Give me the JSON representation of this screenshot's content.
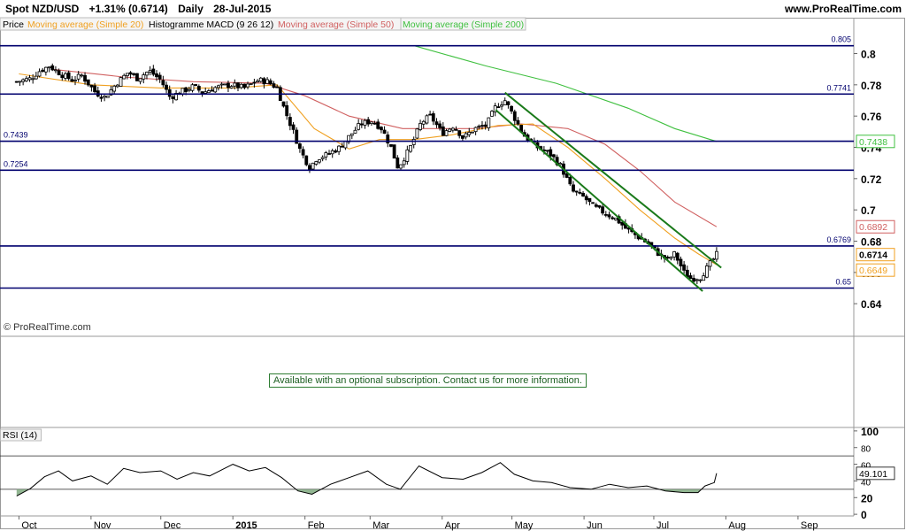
{
  "header": {
    "symbol": "Spot NZD/USD",
    "change": "+1.31% (0.6714)",
    "period": "Daily",
    "date": "28-Jul-2015",
    "site": "www.ProRealTime.com"
  },
  "legend": {
    "price": "Price",
    "ma20": "Moving average (Simple 20)",
    "macd": "Histogramme MACD (9 26 12)",
    "ma50": "Moving average (Simple 50)",
    "ma200": "Moving average (Simple 200)"
  },
  "watermark": "© ProRealTime.com",
  "subscription_note": "Available with an optional subscription. Contact us for more information.",
  "colors": {
    "ma20": "#f0a020",
    "ma50": "#d06060",
    "ma200": "#40c040",
    "level": "#00006e",
    "channel": "#1a7a1a",
    "rsi": "#000000"
  },
  "chart_data": [
    {
      "type": "candlestick",
      "ylim": [
        0.635,
        0.815
      ],
      "y_ticks": [
        {
          "value": 0.8,
          "label": "0.8"
        },
        {
          "value": 0.78,
          "label": "0.78"
        },
        {
          "value": 0.76,
          "label": "0.76"
        },
        {
          "value": 0.74,
          "label": "0.74"
        },
        {
          "value": 0.72,
          "label": "0.72"
        },
        {
          "value": 0.7,
          "label": "0.7"
        },
        {
          "value": 0.68,
          "label": "0.68"
        },
        {
          "value": 0.66,
          "label": "0.66"
        },
        {
          "value": 0.64,
          "label": "0.64"
        }
      ],
      "x_ticks": [
        "Oct",
        "Nov",
        "Dec",
        "2015",
        "Feb",
        "Mar",
        "Apr",
        "May",
        "Jun",
        "Jul",
        "Aug",
        "Sep"
      ],
      "levels": [
        {
          "value": 0.805,
          "label": "0.805"
        },
        {
          "value": 0.7741,
          "label": "0.7741"
        },
        {
          "value": 0.7439,
          "label": "0.7439"
        },
        {
          "value": 0.7254,
          "label": "0.7254"
        },
        {
          "value": 0.6769,
          "label": "0.6769"
        },
        {
          "value": 0.65,
          "label": "0.65"
        }
      ],
      "price_badges": [
        {
          "value": 0.7438,
          "label": "0.7438",
          "color": "#40c040"
        },
        {
          "value": 0.6892,
          "label": "0.6892",
          "color": "#d06060"
        },
        {
          "value": 0.6714,
          "label": "0.6714",
          "color": "#f0a020"
        },
        {
          "value": 0.6649,
          "label": "0.6649",
          "color": "#f0a020"
        }
      ],
      "channel": {
        "upper": [
          {
            "date": "2015-04-28",
            "value": 0.775
          },
          {
            "date": "2015-07-30",
            "value": 0.663
          }
        ],
        "lower": [
          {
            "date": "2015-04-24",
            "value": 0.764
          },
          {
            "date": "2015-07-22",
            "value": 0.648
          }
        ]
      },
      "close_path": [
        [
          "2014-09-30",
          0.782
        ],
        [
          "2014-10-06",
          0.784
        ],
        [
          "2014-10-10",
          0.789
        ],
        [
          "2014-10-14",
          0.792
        ],
        [
          "2014-10-20",
          0.786
        ],
        [
          "2014-10-24",
          0.783
        ],
        [
          "2014-10-28",
          0.786
        ],
        [
          "2014-11-03",
          0.775
        ],
        [
          "2014-11-07",
          0.772
        ],
        [
          "2014-11-12",
          0.781
        ],
        [
          "2014-11-17",
          0.788
        ],
        [
          "2014-11-21",
          0.784
        ],
        [
          "2014-11-26",
          0.789
        ],
        [
          "2014-12-01",
          0.783
        ],
        [
          "2014-12-05",
          0.772
        ],
        [
          "2014-12-09",
          0.775
        ],
        [
          "2014-12-15",
          0.779
        ],
        [
          "2014-12-19",
          0.775
        ],
        [
          "2014-12-24",
          0.778
        ],
        [
          "2014-12-31",
          0.78
        ],
        [
          "2015-01-06",
          0.778
        ],
        [
          "2015-01-12",
          0.783
        ],
        [
          "2015-01-16",
          0.782
        ],
        [
          "2015-01-20",
          0.778
        ],
        [
          "2015-01-23",
          0.765
        ],
        [
          "2015-01-27",
          0.75
        ],
        [
          "2015-01-30",
          0.738
        ],
        [
          "2015-02-03",
          0.727
        ],
        [
          "2015-02-06",
          0.733
        ],
        [
          "2015-02-10",
          0.735
        ],
        [
          "2015-02-16",
          0.74
        ],
        [
          "2015-02-20",
          0.747
        ],
        [
          "2015-02-25",
          0.755
        ],
        [
          "2015-03-02",
          0.757
        ],
        [
          "2015-03-06",
          0.752
        ],
        [
          "2015-03-10",
          0.74
        ],
        [
          "2015-03-13",
          0.727
        ],
        [
          "2015-03-18",
          0.739
        ],
        [
          "2015-03-23",
          0.756
        ],
        [
          "2015-03-27",
          0.76
        ],
        [
          "2015-04-01",
          0.749
        ],
        [
          "2015-04-06",
          0.754
        ],
        [
          "2015-04-10",
          0.746
        ],
        [
          "2015-04-15",
          0.752
        ],
        [
          "2015-04-20",
          0.754
        ],
        [
          "2015-04-24",
          0.766
        ],
        [
          "2015-04-28",
          0.77
        ],
        [
          "2015-05-01",
          0.762
        ],
        [
          "2015-05-06",
          0.748
        ],
        [
          "2015-05-12",
          0.74
        ],
        [
          "2015-05-18",
          0.735
        ],
        [
          "2015-05-22",
          0.728
        ],
        [
          "2015-05-27",
          0.712
        ],
        [
          "2015-06-01",
          0.708
        ],
        [
          "2015-06-05",
          0.702
        ],
        [
          "2015-06-10",
          0.698
        ],
        [
          "2015-06-15",
          0.694
        ],
        [
          "2015-06-19",
          0.688
        ],
        [
          "2015-06-24",
          0.683
        ],
        [
          "2015-06-29",
          0.678
        ],
        [
          "2015-07-03",
          0.672
        ],
        [
          "2015-07-07",
          0.668
        ],
        [
          "2015-07-10",
          0.672
        ],
        [
          "2015-07-14",
          0.66
        ],
        [
          "2015-07-17",
          0.656
        ],
        [
          "2015-07-21",
          0.657
        ],
        [
          "2015-07-24",
          0.663
        ],
        [
          "2015-07-28",
          0.6714
        ]
      ],
      "ma20": [
        [
          "2014-10-01",
          0.787
        ],
        [
          "2014-11-01",
          0.78
        ],
        [
          "2014-12-01",
          0.778
        ],
        [
          "2015-01-01",
          0.778
        ],
        [
          "2015-01-20",
          0.78
        ],
        [
          "2015-02-05",
          0.752
        ],
        [
          "2015-02-20",
          0.739
        ],
        [
          "2015-03-05",
          0.745
        ],
        [
          "2015-03-20",
          0.745
        ],
        [
          "2015-04-05",
          0.748
        ],
        [
          "2015-04-25",
          0.754
        ],
        [
          "2015-05-10",
          0.755
        ],
        [
          "2015-05-25",
          0.74
        ],
        [
          "2015-06-10",
          0.72
        ],
        [
          "2015-06-25",
          0.7
        ],
        [
          "2015-07-10",
          0.682
        ],
        [
          "2015-07-20",
          0.672
        ],
        [
          "2015-07-28",
          0.6649
        ]
      ],
      "ma50": [
        [
          "2014-10-15",
          0.79
        ],
        [
          "2014-11-15",
          0.785
        ],
        [
          "2014-12-15",
          0.782
        ],
        [
          "2015-01-15",
          0.781
        ],
        [
          "2015-02-01",
          0.773
        ],
        [
          "2015-02-20",
          0.76
        ],
        [
          "2015-03-15",
          0.752
        ],
        [
          "2015-04-15",
          0.752
        ],
        [
          "2015-05-05",
          0.755
        ],
        [
          "2015-05-25",
          0.752
        ],
        [
          "2015-06-10",
          0.742
        ],
        [
          "2015-06-25",
          0.725
        ],
        [
          "2015-07-10",
          0.705
        ],
        [
          "2015-07-28",
          0.6892
        ]
      ],
      "ma200": [
        [
          "2015-03-20",
          0.805
        ],
        [
          "2015-04-20",
          0.792
        ],
        [
          "2015-05-20",
          0.781
        ],
        [
          "2015-06-20",
          0.765
        ],
        [
          "2015-07-10",
          0.752
        ],
        [
          "2015-07-28",
          0.7438
        ]
      ]
    },
    {
      "type": "line",
      "title": "RSI (14)",
      "ylim": [
        -2,
        102
      ],
      "y_ticks": [
        100,
        80,
        60,
        40,
        20,
        0
      ],
      "overbought": 70,
      "oversold": 30,
      "last_value_label": "49.101",
      "series": [
        [
          "2014-09-30",
          22
        ],
        [
          "2014-10-06",
          31
        ],
        [
          "2014-10-12",
          45
        ],
        [
          "2014-10-18",
          52
        ],
        [
          "2014-10-24",
          40
        ],
        [
          "2014-11-01",
          46
        ],
        [
          "2014-11-08",
          36
        ],
        [
          "2014-11-15",
          55
        ],
        [
          "2014-11-22",
          50
        ],
        [
          "2014-12-01",
          52
        ],
        [
          "2014-12-08",
          42
        ],
        [
          "2014-12-15",
          50
        ],
        [
          "2014-12-22",
          46
        ],
        [
          "2015-01-01",
          60
        ],
        [
          "2015-01-08",
          52
        ],
        [
          "2015-01-15",
          56
        ],
        [
          "2015-01-22",
          44
        ],
        [
          "2015-01-29",
          28
        ],
        [
          "2015-02-04",
          24
        ],
        [
          "2015-02-12",
          36
        ],
        [
          "2015-02-20",
          44
        ],
        [
          "2015-02-28",
          52
        ],
        [
          "2015-03-08",
          36
        ],
        [
          "2015-03-14",
          30
        ],
        [
          "2015-03-22",
          58
        ],
        [
          "2015-04-01",
          44
        ],
        [
          "2015-04-10",
          42
        ],
        [
          "2015-04-18",
          50
        ],
        [
          "2015-04-26",
          62
        ],
        [
          "2015-05-02",
          48
        ],
        [
          "2015-05-10",
          40
        ],
        [
          "2015-05-18",
          38
        ],
        [
          "2015-05-26",
          32
        ],
        [
          "2015-06-04",
          30
        ],
        [
          "2015-06-12",
          36
        ],
        [
          "2015-06-20",
          32
        ],
        [
          "2015-06-28",
          34
        ],
        [
          "2015-07-06",
          28
        ],
        [
          "2015-07-14",
          26
        ],
        [
          "2015-07-20",
          26
        ],
        [
          "2015-07-23",
          34
        ],
        [
          "2015-07-27",
          38
        ],
        [
          "2015-07-28",
          49.101
        ]
      ]
    }
  ]
}
